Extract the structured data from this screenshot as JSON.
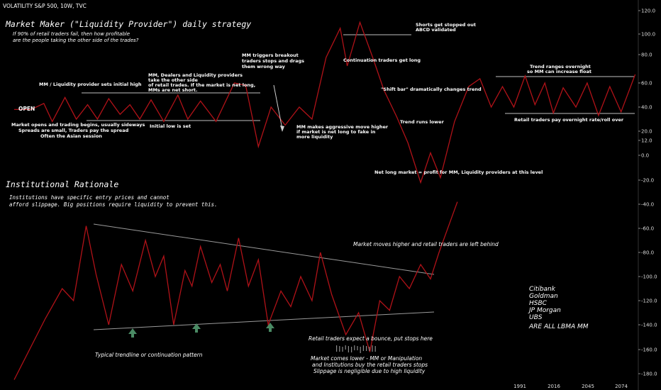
{
  "header": {
    "symbol": "VOLATILITY S&P 500, 10W, TVC"
  },
  "chart_data": {
    "type": "line",
    "y_ticks": [
      "120.0",
      "100.0",
      "80.0",
      "60.0",
      "40.0",
      "20.0",
      "12.0",
      "0.0",
      "-20.0",
      "-40.0",
      "-60.0",
      "-80.0",
      "-100.0",
      "-120.0",
      "-140.0",
      "-160.0",
      "-180.0"
    ],
    "x_ticks": [
      "1991",
      "2016",
      "2045",
      "2074"
    ],
    "top_series": [
      [
        0,
        38
      ],
      [
        0.6,
        38
      ],
      [
        1.05,
        43
      ],
      [
        1.35,
        28
      ],
      [
        1.8,
        48
      ],
      [
        2.2,
        30
      ],
      [
        2.6,
        42
      ],
      [
        2.95,
        30
      ],
      [
        3.35,
        47
      ],
      [
        3.75,
        34
      ],
      [
        4.1,
        42
      ],
      [
        4.45,
        30
      ],
      [
        4.85,
        46
      ],
      [
        5.3,
        28
      ],
      [
        5.8,
        50
      ],
      [
        6.15,
        30
      ],
      [
        6.6,
        45
      ],
      [
        7.15,
        28
      ],
      [
        7.8,
        60
      ],
      [
        8.2,
        58
      ],
      [
        8.65,
        7
      ],
      [
        9.1,
        40
      ],
      [
        9.6,
        25
      ],
      [
        10.1,
        40
      ],
      [
        10.55,
        30
      ],
      [
        11.05,
        78
      ],
      [
        11.55,
        105
      ],
      [
        11.8,
        72
      ],
      [
        12.25,
        110
      ],
      [
        12.7,
        78
      ],
      [
        13.1,
        54
      ],
      [
        13.55,
        32
      ],
      [
        13.95,
        10
      ],
      [
        14.4,
        -22
      ],
      [
        14.75,
        2
      ],
      [
        15.1,
        -18
      ],
      [
        15.6,
        28
      ],
      [
        16.1,
        57
      ],
      [
        16.5,
        63
      ],
      [
        16.9,
        40
      ],
      [
        17.3,
        57
      ],
      [
        17.7,
        40
      ],
      [
        18.1,
        65
      ],
      [
        18.45,
        42
      ],
      [
        18.8,
        60
      ],
      [
        19.1,
        35
      ],
      [
        19.45,
        56
      ],
      [
        19.9,
        40
      ],
      [
        20.3,
        60
      ],
      [
        20.7,
        33
      ],
      [
        21.1,
        57
      ],
      [
        21.5,
        36
      ],
      [
        22.0,
        66
      ]
    ],
    "bottom_series": [
      [
        0,
        -185
      ],
      [
        1.1,
        -135
      ],
      [
        1.7,
        -110
      ],
      [
        2.1,
        -120
      ],
      [
        2.55,
        -58
      ],
      [
        2.9,
        -98
      ],
      [
        3.35,
        -140
      ],
      [
        3.8,
        -90
      ],
      [
        4.2,
        -112
      ],
      [
        4.65,
        -70
      ],
      [
        5.0,
        -100
      ],
      [
        5.3,
        -83
      ],
      [
        5.65,
        -140
      ],
      [
        6.05,
        -95
      ],
      [
        6.3,
        -108
      ],
      [
        6.6,
        -75
      ],
      [
        7.0,
        -105
      ],
      [
        7.3,
        -90
      ],
      [
        7.55,
        -112
      ],
      [
        7.95,
        -68
      ],
      [
        8.3,
        -108
      ],
      [
        8.65,
        -86
      ],
      [
        9.0,
        -140
      ],
      [
        9.45,
        -112
      ],
      [
        9.8,
        -125
      ],
      [
        10.15,
        -100
      ],
      [
        10.55,
        -120
      ],
      [
        10.85,
        -80
      ],
      [
        11.25,
        -115
      ],
      [
        11.75,
        -148
      ],
      [
        12.2,
        -130
      ],
      [
        12.6,
        -162
      ],
      [
        12.95,
        -120
      ],
      [
        13.3,
        -128
      ],
      [
        13.65,
        -100
      ],
      [
        14.0,
        -110
      ],
      [
        14.4,
        -90
      ],
      [
        14.75,
        -102
      ],
      [
        15.05,
        -80
      ],
      [
        15.7,
        -38
      ]
    ],
    "levels": {
      "top_initial_high": 52,
      "top_low": 30,
      "top_resistance": 98,
      "top_range_high": 66,
      "top_range_low": 34
    }
  },
  "annotations": {
    "main_title": "Market Maker (\"Liquidity Provider\") daily strategy",
    "intro_1": "If 90% of retail traders fail, then how profitable",
    "intro_2": "are the people taking the other side of the trades?",
    "open_label": "OPEN",
    "mm_initial_high": "MM / Liquidity provider sets initial high",
    "dealers_1": "MM, Dealers and Liquidity providers",
    "dealers_2": "take the other side",
    "dealers_3": "of retail trades. If the market is net long,",
    "dealers_4": "MMs are net short.",
    "breakout_1": "MM triggers breakout",
    "breakout_2": "traders stops and drags",
    "breakout_3": "them wrong way",
    "market_opens_1": "Market opens and trading begins, usually sideways",
    "market_opens_2": "Spreads are small, Traders pay the spread",
    "market_opens_3": "Often the Asian session",
    "initial_low": "Initial low is set",
    "aggressive_1": "MM makes aggressive move higher",
    "aggressive_2": "if market is net long to fake in",
    "aggressive_3": "more liquidity",
    "shorts_1": "Shorts get stopped out",
    "shorts_2": "ABCD validated",
    "continuation": "Continuation traders get long",
    "shift_bar": "\"Shift bar\" dramatically changes trend",
    "trend_runs": "Trend runs lower",
    "trend_ranges_1": "Trend ranges overnight",
    "trend_ranges_2": "so MM can increase float",
    "retail_pay": "Retail traders pay overnight rate/roll over",
    "net_long": "Net long market = profit for MM, Liquidity providers at this level",
    "inst_title": "Institutional Rationale",
    "inst_1": "Institutions have specific entry prices and cannot",
    "inst_2": "afford slippage. Big positions require liquidity to prevent this.",
    "moves_higher": "Market moves higher and retail traders are left behind",
    "trendline": "Typical trendline or continuation pattern",
    "bounce": "Retail traders expect a bounce,  put stops here",
    "comes_lower_1": "Market comes lower - MM or Manipulation",
    "comes_lower_2": "and Institutions buy the retail traders stops",
    "comes_lower_3": "Slippage is negligible due to high liquidity",
    "bank_1": "Citibank",
    "bank_2": "Goldman",
    "bank_3": "HSBC",
    "bank_4": "JP Morgan",
    "bank_5": "UBS",
    "bank_6": "ARE ALL LBMA MM"
  },
  "colors": {
    "line": "#b01218",
    "arrow": "#4a8a64",
    "guide": "#bfbfbf"
  }
}
